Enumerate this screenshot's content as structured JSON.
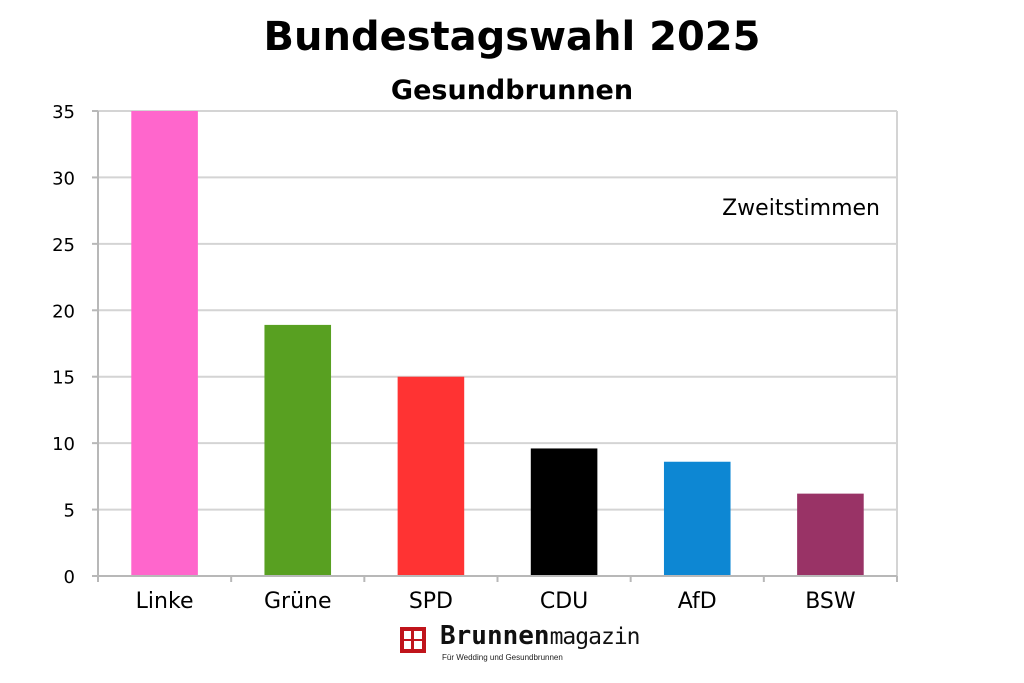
{
  "chart_data": {
    "type": "bar",
    "title": "Bundestagswahl 2025",
    "subtitle": "Gesundbrunnen",
    "annotation": "Zweitstimmen",
    "categories": [
      "Linke",
      "Grüne",
      "SPD",
      "CDU",
      "AfD",
      "BSW"
    ],
    "values": [
      35,
      18.9,
      15,
      9.6,
      8.6,
      6.2
    ],
    "colors": [
      "#ff66cc",
      "#58a021",
      "#ff3333",
      "#000000",
      "#0d87d3",
      "#993366"
    ],
    "ylim": [
      0,
      35
    ],
    "yticks": [
      0,
      5,
      10,
      15,
      20,
      25,
      30,
      35
    ],
    "xlabel": "",
    "ylabel": "",
    "grid": true,
    "legend": "none"
  },
  "logo": {
    "name_bold": "Brunnen",
    "name_light": "magazin",
    "tagline": "Für Wedding und Gesundbrunnen",
    "icon": "window-logo-icon",
    "color": "#c0141b"
  }
}
